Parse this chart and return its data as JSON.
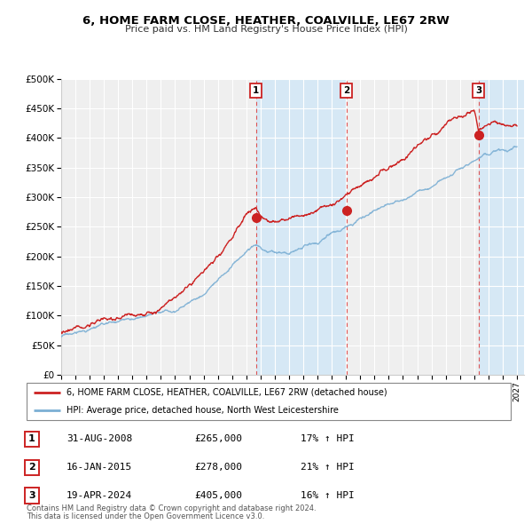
{
  "title": "6, HOME FARM CLOSE, HEATHER, COALVILLE, LE67 2RW",
  "subtitle": "Price paid vs. HM Land Registry's House Price Index (HPI)",
  "xlim_start": 1995.0,
  "xlim_end": 2027.5,
  "ylim_min": 0,
  "ylim_max": 500000,
  "yticks": [
    0,
    50000,
    100000,
    150000,
    200000,
    250000,
    300000,
    350000,
    400000,
    450000,
    500000
  ],
  "xticks": [
    1995,
    1996,
    1997,
    1998,
    1999,
    2000,
    2001,
    2002,
    2003,
    2004,
    2005,
    2006,
    2007,
    2008,
    2009,
    2010,
    2011,
    2012,
    2013,
    2014,
    2015,
    2016,
    2017,
    2018,
    2019,
    2020,
    2021,
    2022,
    2023,
    2024,
    2025,
    2026,
    2027
  ],
  "background_color": "#ffffff",
  "plot_bg_color": "#efefef",
  "grid_color": "#ffffff",
  "hpi_color": "#7bafd4",
  "price_color": "#cc2222",
  "shade_color": "#d6e8f5",
  "vline_color": "#dd4444",
  "legend_label_price": "6, HOME FARM CLOSE, HEATHER, COALVILLE, LE67 2RW (detached house)",
  "legend_label_hpi": "HPI: Average price, detached house, North West Leicestershire",
  "sales": [
    {
      "num": 1,
      "date": "31-AUG-2008",
      "x": 2008.667,
      "price": 265000,
      "hpi_pct": "17%",
      "marker_y": 265000
    },
    {
      "num": 2,
      "date": "16-JAN-2015",
      "x": 2015.042,
      "price": 278000,
      "hpi_pct": "21%",
      "marker_y": 278000
    },
    {
      "num": 3,
      "date": "19-APR-2024",
      "x": 2024.3,
      "price": 405000,
      "hpi_pct": "16%",
      "marker_y": 405000
    }
  ],
  "footer_line1": "Contains HM Land Registry data © Crown copyright and database right 2024.",
  "footer_line2": "This data is licensed under the Open Government Licence v3.0."
}
